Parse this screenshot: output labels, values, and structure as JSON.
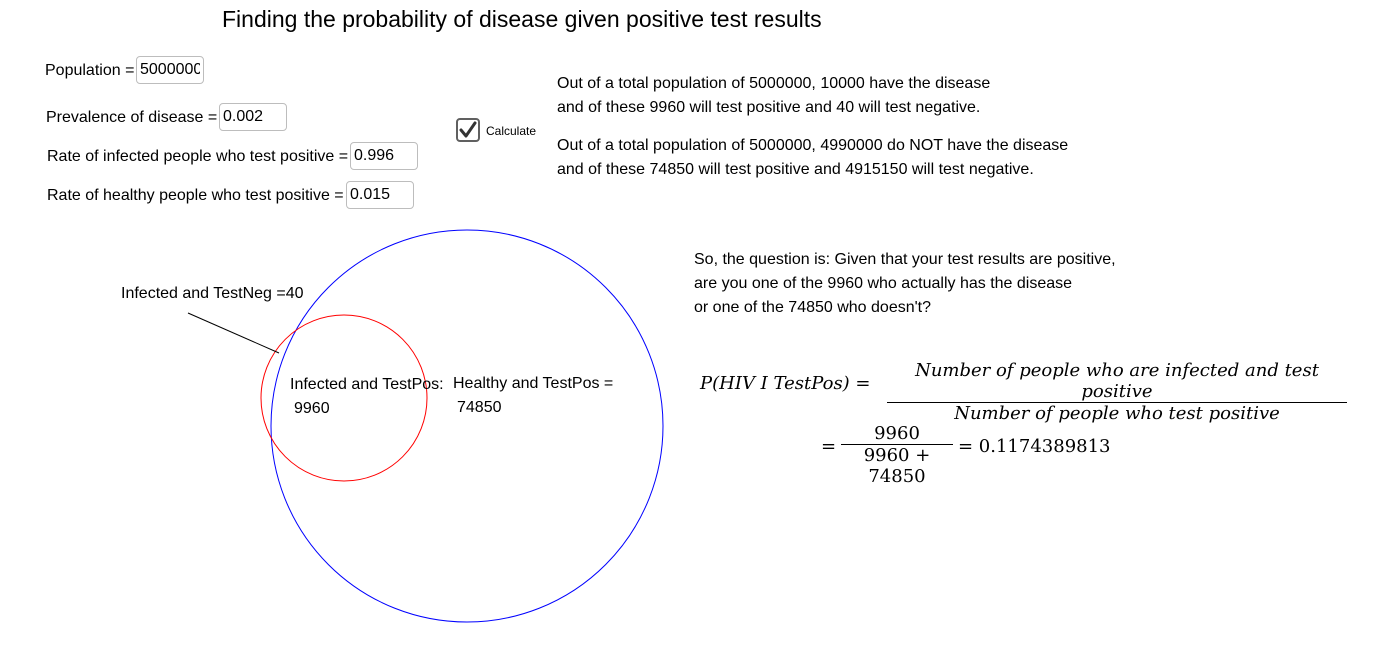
{
  "title": "Finding the probability of disease given positive test results",
  "inputs": {
    "population": {
      "label": "Population =",
      "value": "5000000"
    },
    "prevalence": {
      "label": "Prevalence of disease =",
      "value": "0.002"
    },
    "rate_infected_positive": {
      "label": "Rate of infected people who test positive =",
      "value": "0.996"
    },
    "rate_healthy_positive": {
      "label": "Rate of healthy people who test positive =",
      "value": "0.015"
    }
  },
  "calculate": {
    "label": "Calculate",
    "checked": true
  },
  "summary": {
    "infected_line1": "Out of a total population of 5000000, 10000 have the disease",
    "infected_line2": "and of these 9960 will test positive and 40 will test negative.",
    "healthy_line1": "Out of a total population of 5000000, 4990000 do NOT have the disease",
    "healthy_line2": "and of these 74850 will test positive and 4915150 will test negative."
  },
  "question": {
    "line1": "So, the question is: Given that your test results are positive,",
    "line2": "are you one of the 9960 who actually has the disease",
    "line3": "or one of the 74850 who doesn't?"
  },
  "venn": {
    "infected_testneg": "Infected and TestNeg =40",
    "infected_testpos_label": "Infected and TestPos:",
    "infected_testpos_value": "9960",
    "healthy_testpos_label": "Healthy and TestPos =",
    "healthy_testpos_value": "74850",
    "colors": {
      "population_circle": "#0000ff",
      "infected_circle": "#ff0000"
    }
  },
  "formula": {
    "lhs": "P(HIV I TestPos) =",
    "numerator": "Number of people who are infected and test positive",
    "denominator": "Number of people who test positive",
    "eq": "=",
    "num2": "9960",
    "den2": "9960 + 74850",
    "result": "= 0.1174389813"
  }
}
